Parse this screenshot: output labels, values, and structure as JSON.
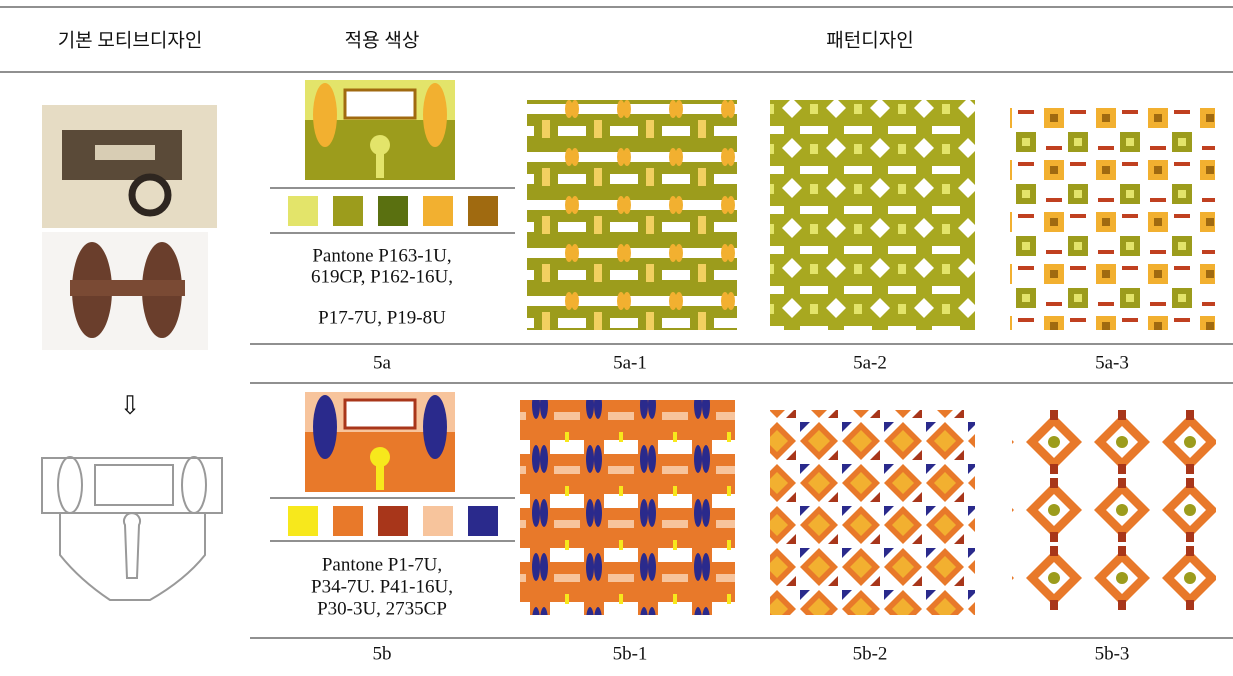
{
  "header": {
    "columns": [
      "기본 모티브디자인",
      "적용 색상",
      "패턴디자인"
    ]
  },
  "rows": [
    {
      "color_text": [
        "Pantone P163-1U,",
        "619CP, P162-16U,",
        "P17-7U, P19-8U"
      ],
      "captions": [
        "5a",
        "5a-1",
        "5a-2",
        "5a-3"
      ]
    },
    {
      "color_text": [
        "Pantone P1-7U,",
        "P34-7U. P41-16U,",
        "P30-3U, 2735CP"
      ],
      "captions": [
        "5b",
        "5b-1",
        "5b-2",
        "5b-3"
      ]
    }
  ]
}
